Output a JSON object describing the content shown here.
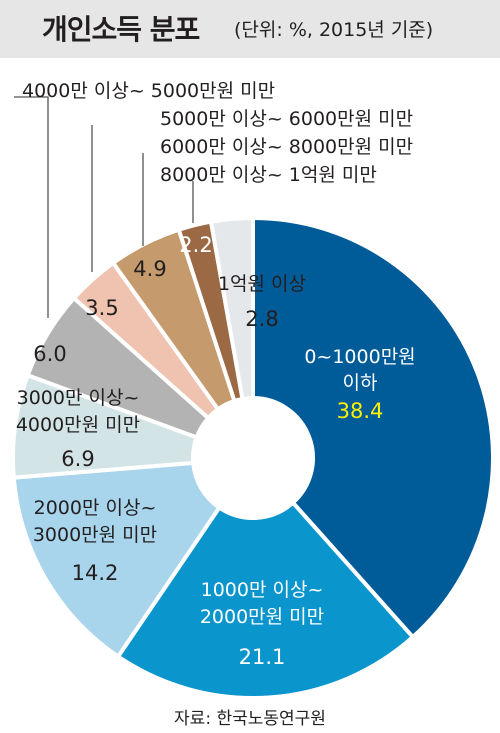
{
  "header": {
    "title": "개인소득 분포",
    "subtitle": "(단위: %, 2015년 기준)"
  },
  "source": "자료: 한국노동연구원",
  "colors": {
    "header_bg": "#e6e6e6",
    "highlight_value": "#fff200",
    "leader_line": "#555555"
  },
  "chart_data": {
    "type": "pie",
    "donut": true,
    "title": "개인소득 분포",
    "subtitle": "(단위: %, 2015년 기준)",
    "unit": "%",
    "start": "12 o'clock",
    "direction": "clockwise",
    "slices": [
      {
        "label": "0~1000만원 이하",
        "label_lines": [
          "0~1000만원",
          "이하"
        ],
        "value": 38.4,
        "value_text": "38.4",
        "color": "#005b99",
        "text_color": "#ffffff",
        "value_color": "#fff200",
        "label_position": "inside"
      },
      {
        "label": "1000만 이상~ 2000만원 미만",
        "label_lines": [
          "1000만 이상~",
          "2000만원 미만"
        ],
        "value": 21.1,
        "value_text": "21.1",
        "color": "#0a95cd",
        "text_color": "#ffffff",
        "value_color": "#ffffff",
        "label_position": "inside"
      },
      {
        "label": "2000만 이상~ 3000만원 미만",
        "label_lines": [
          "2000만 이상~",
          "3000만원 미만"
        ],
        "value": 14.2,
        "value_text": "14.2",
        "color": "#a8d5ec",
        "text_color": "#231f20",
        "value_color": "#231f20",
        "label_position": "inside"
      },
      {
        "label": "3000만 이상~ 4000만원 미만",
        "label_lines": [
          "3000만 이상~",
          "4000만원 미만"
        ],
        "value": 6.9,
        "value_text": "6.9",
        "color": "#d3e4e6",
        "text_color": "#231f20",
        "value_color": "#231f20",
        "label_position": "inside"
      },
      {
        "label": "4000만 이상~ 5000만원 미만",
        "label_lines": [],
        "value": 6.0,
        "value_text": "6.0",
        "color": "#b3b3b3",
        "text_color": "#231f20",
        "value_color": "#231f20",
        "label_position": "callout"
      },
      {
        "label": "5000만 이상~ 6000만원 미만",
        "label_lines": [],
        "value": 3.5,
        "value_text": "3.5",
        "color": "#efc3b0",
        "text_color": "#231f20",
        "value_color": "#231f20",
        "label_position": "callout"
      },
      {
        "label": "6000만 이상~ 8000만원 미만",
        "label_lines": [],
        "value": 4.9,
        "value_text": "4.9",
        "color": "#c59a6c",
        "text_color": "#231f20",
        "value_color": "#231f20",
        "label_position": "callout"
      },
      {
        "label": "8000만 이상~ 1억원 미만",
        "label_lines": [],
        "value": 2.2,
        "value_text": "2.2",
        "color": "#9b6a44",
        "text_color": "#ffffff",
        "value_color": "#ffffff",
        "label_position": "callout"
      },
      {
        "label": "1억원 이상",
        "label_lines": [
          "1억원 이상"
        ],
        "value": 2.8,
        "value_text": "2.8",
        "color": "#e5e8ea",
        "text_color": "#231f20",
        "value_color": "#231f20",
        "label_position": "nearby"
      }
    ],
    "callouts": [
      {
        "slice_index": 4,
        "text": "4000만 이상~ 5000만원 미만"
      },
      {
        "slice_index": 5,
        "text": "5000만 이상~ 6000만원 미만"
      },
      {
        "slice_index": 6,
        "text": "6000만 이상~ 8000만원 미만"
      },
      {
        "slice_index": 7,
        "text": "8000만 이상~ 1억원 미만"
      }
    ]
  }
}
